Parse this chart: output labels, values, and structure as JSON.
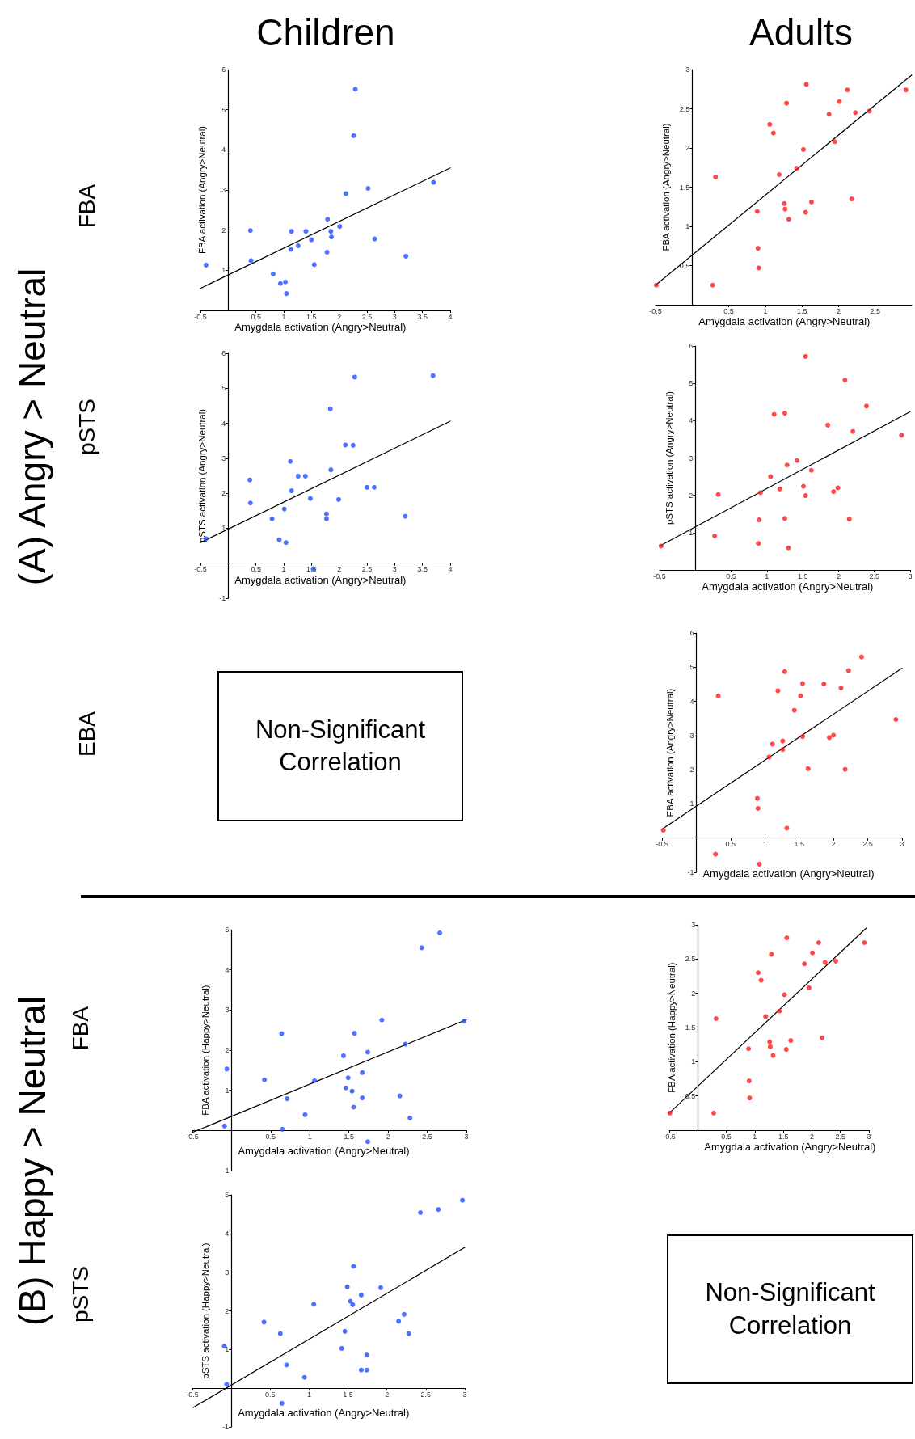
{
  "chart_data": [
    {
      "type": "other",
      "annotations": [
        "Children",
        "Adults",
        "(A) Angry > Neutral",
        "(B) Happy > Neutral",
        "FBA",
        "pSTS",
        "EBA",
        "FBA",
        "pSTS"
      ]
    },
    {
      "type": "scatter",
      "xlabel": "Amygdala activation (Angry>Neutral)",
      "ylabel": "FBA activation (Angry>Neutral)",
      "xlim": [
        -0.5,
        4
      ],
      "ylim": [
        0,
        6
      ],
      "xticks": [
        -0.5,
        0.5,
        1,
        1.5,
        2,
        2.5,
        3,
        3.5,
        4
      ],
      "yticks": [
        1,
        2,
        3,
        4,
        5,
        6
      ],
      "series": [
        {
          "type": "scatter",
          "marker": "circle",
          "color": "#1f4fff",
          "x": [
            -0.4,
            2.29,
            2.26,
            3.7,
            2.52,
            2.12,
            1.79,
            0.4,
            2.01,
            1.14,
            1.4,
            1.85,
            1.86,
            2.64,
            1.5,
            1.26,
            1.13,
            0.41,
            1.78,
            1.55,
            3.2,
            0.81,
            0.94,
            1.03,
            1.05
          ],
          "values": [
            1.13,
            5.51,
            4.35,
            3.19,
            3.04,
            2.91,
            2.27,
            1.99,
            2.09,
            1.97,
            1.97,
            1.97,
            1.83,
            1.78,
            1.76,
            1.61,
            1.52,
            1.24,
            1.45,
            1.14,
            1.35,
            0.91,
            0.67,
            0.71,
            0.42
          ]
        },
        {
          "type": "line",
          "color": "#000000",
          "x": [
            -0.5,
            4
          ],
          "values": [
            0.55,
            3.55
          ]
        }
      ]
    },
    {
      "type": "scatter",
      "xlabel": "Amygdala activation (Angry>Neutral)",
      "ylabel": "FBA activation (Angry>Neutral)",
      "xlim": [
        -0.5,
        3
      ],
      "ylim": [
        0,
        3
      ],
      "xticks": [
        -0.5,
        0.5,
        1,
        1.5,
        2,
        2.5
      ],
      "yticks": [
        0.5,
        1,
        1.5,
        2,
        2.5,
        3
      ],
      "series": [
        {
          "type": "scatter",
          "marker": "circle",
          "color": "#ff1a1a",
          "x": [
            -0.49,
            0.28,
            0.32,
            0.91,
            0.9,
            0.89,
            1.06,
            1.11,
            1.19,
            1.26,
            1.27,
            1.32,
            1.29,
            1.43,
            1.52,
            1.56,
            1.55,
            1.63,
            1.87,
            1.95,
            2.01,
            2.12,
            2.18,
            2.23,
            2.42,
            2.92
          ],
          "values": [
            0.25,
            0.25,
            1.63,
            0.47,
            0.72,
            1.19,
            2.3,
            2.19,
            1.66,
            1.29,
            1.22,
            1.09,
            2.57,
            1.74,
            1.98,
            2.81,
            1.18,
            1.31,
            2.43,
            2.08,
            2.59,
            2.74,
            1.35,
            2.45,
            2.47,
            2.74
          ]
        },
        {
          "type": "line",
          "color": "#000000",
          "x": [
            -0.5,
            3
          ],
          "values": [
            0.25,
            2.93
          ]
        }
      ]
    },
    {
      "type": "scatter",
      "xlabel": "Amygdala activation (Angry>Neutral)",
      "ylabel": "pSTS activation (Angry>Neutral)",
      "xlim": [
        -0.5,
        4
      ],
      "ylim": [
        -1,
        6
      ],
      "xticks": [
        -0.5,
        0.5,
        1,
        1.5,
        2,
        2.5,
        3,
        3.5,
        4
      ],
      "yticks": [
        -1,
        1,
        2,
        3,
        4,
        5,
        6
      ],
      "series": [
        {
          "type": "scatter",
          "marker": "circle",
          "color": "#1f4fff",
          "x": [
            -0.4,
            2.28,
            3.69,
            1.84,
            2.11,
            2.25,
            1.12,
            1.85,
            1.26,
            1.39,
            0.39,
            2.5,
            2.63,
            1.14,
            1.48,
            1.99,
            0.4,
            1.01,
            1.77,
            1.77,
            0.79,
            3.19,
            0.92,
            1.04,
            1.53
          ],
          "values": [
            0.7,
            5.32,
            5.36,
            4.41,
            3.38,
            3.37,
            2.91,
            2.67,
            2.49,
            2.49,
            2.38,
            2.17,
            2.17,
            2.07,
            1.85,
            1.82,
            1.72,
            1.55,
            1.41,
            1.27,
            1.27,
            1.34,
            0.67,
            0.59,
            -0.16
          ]
        },
        {
          "type": "line",
          "color": "#000000",
          "x": [
            -0.5,
            4
          ],
          "values": [
            0.59,
            4.06
          ]
        }
      ]
    },
    {
      "type": "scatter",
      "xlabel": "Amygdala activation (Angry>Neutral)",
      "ylabel": "pSTS activation (Angry>Neutral)",
      "xlim": [
        -0.5,
        3
      ],
      "ylim": [
        0,
        6
      ],
      "xticks": [
        -0.5,
        0.5,
        1,
        1.5,
        2,
        2.5,
        3
      ],
      "yticks": [
        1,
        2,
        3,
        4,
        5,
        6
      ],
      "series": [
        {
          "type": "scatter",
          "marker": "circle",
          "color": "#ff1a1a",
          "x": [
            -0.48,
            0.27,
            0.32,
            0.88,
            0.89,
            0.91,
            1.05,
            1.1,
            1.18,
            1.25,
            1.25,
            1.28,
            1.3,
            1.42,
            1.54,
            1.51,
            1.54,
            1.62,
            1.85,
            1.93,
            1.99,
            2.09,
            2.15,
            2.2,
            2.39,
            2.88
          ],
          "values": [
            0.64,
            0.91,
            2.02,
            0.71,
            1.34,
            2.07,
            2.5,
            4.17,
            2.17,
            4.2,
            1.38,
            2.81,
            0.59,
            2.93,
            5.72,
            2.24,
            1.99,
            2.67,
            3.88,
            2.1,
            2.2,
            5.09,
            1.36,
            3.71,
            4.39,
            3.61
          ]
        },
        {
          "type": "line",
          "color": "#000000",
          "x": [
            -0.5,
            3
          ],
          "values": [
            0.64,
            4.24
          ]
        }
      ]
    },
    {
      "type": "other",
      "annotations": [
        "Non-Significant Correlation"
      ]
    },
    {
      "type": "scatter",
      "xlabel": "Amygdala activation (Angry>Neutral)",
      "ylabel": "EBA activation (Angry>Neutral)",
      "xlim": [
        -0.5,
        3
      ],
      "ylim": [
        -1,
        6
      ],
      "xticks": [
        -0.5,
        0.5,
        1,
        1.5,
        2,
        2.5,
        3
      ],
      "yticks": [
        -1,
        1,
        2,
        3,
        4,
        5,
        6
      ],
      "series": [
        {
          "type": "scatter",
          "marker": "circle",
          "color": "#ff1a1a",
          "x": [
            -0.48,
            0.32,
            0.28,
            0.89,
            0.9,
            0.92,
            1.06,
            1.11,
            1.19,
            1.26,
            1.26,
            1.29,
            1.32,
            1.43,
            1.52,
            1.55,
            1.55,
            1.63,
            1.86,
            1.94,
            2.0,
            2.11,
            2.17,
            2.22,
            2.41,
            2.91
          ],
          "values": [
            0.23,
            4.16,
            -0.47,
            1.16,
            0.87,
            -0.76,
            2.37,
            2.75,
            4.31,
            2.59,
            2.84,
            4.87,
            0.29,
            3.74,
            4.16,
            4.52,
            2.97,
            2.03,
            4.51,
            2.94,
            3.01,
            4.39,
            2.01,
            4.9,
            5.3,
            3.47
          ]
        },
        {
          "type": "line",
          "color": "#000000",
          "x": [
            -0.5,
            3
          ],
          "values": [
            0.26,
            4.97
          ]
        }
      ]
    },
    {
      "type": "scatter",
      "xlabel": "Amygdala activation (Angry>Neutral)",
      "ylabel": "FBA activation (Happy>Neutral)",
      "xlim": [
        -0.5,
        3
      ],
      "ylim": [
        -1,
        5
      ],
      "xticks": [
        -0.5,
        0.5,
        1,
        1.5,
        2,
        2.5,
        3
      ],
      "yticks": [
        -1,
        1,
        2,
        3,
        4,
        5
      ],
      "series": [
        {
          "type": "scatter",
          "marker": "circle",
          "color": "#1f4fff",
          "x": [
            -0.09,
            -0.06,
            0.42,
            0.64,
            0.65,
            0.71,
            0.94,
            1.06,
            1.43,
            1.46,
            1.49,
            1.54,
            1.57,
            1.56,
            1.67,
            1.67,
            1.74,
            1.74,
            1.92,
            2.15,
            2.22,
            2.28,
            2.43,
            2.66,
            2.97
          ],
          "values": [
            0.11,
            1.53,
            1.26,
            2.41,
            0.03,
            0.79,
            0.39,
            1.24,
            1.86,
            1.06,
            1.31,
            0.98,
            2.42,
            0.58,
            1.44,
            0.81,
            1.95,
            -0.28,
            2.75,
            0.86,
            2.15,
            0.31,
            4.55,
            4.92,
            2.72
          ]
        },
        {
          "type": "line",
          "color": "#000000",
          "x": [
            -0.5,
            3
          ],
          "values": [
            -0.05,
            2.76
          ]
        }
      ]
    },
    {
      "type": "scatter",
      "xlabel": "Amygdala activation (Angry>Neutral)",
      "ylabel": "FBA activation (Happy>Neutral)",
      "xlim": [
        -0.5,
        3
      ],
      "ylim": [
        0,
        3
      ],
      "xticks": [
        -0.5,
        0.5,
        1,
        1.5,
        2,
        2.5,
        3
      ],
      "yticks": [
        0.5,
        1,
        1.5,
        2,
        2.5,
        3
      ],
      "series": [
        {
          "type": "scatter",
          "marker": "circle",
          "color": "#ff1a1a",
          "x": [
            -0.49,
            0.28,
            0.32,
            0.91,
            0.9,
            0.89,
            1.06,
            1.11,
            1.19,
            1.26,
            1.27,
            1.32,
            1.29,
            1.43,
            1.52,
            1.56,
            1.55,
            1.63,
            1.87,
            1.95,
            2.01,
            2.12,
            2.18,
            2.23,
            2.42,
            2.92
          ],
          "values": [
            0.25,
            0.25,
            1.63,
            0.47,
            0.72,
            1.19,
            2.3,
            2.19,
            1.66,
            1.29,
            1.22,
            1.09,
            2.57,
            1.74,
            1.98,
            2.81,
            1.18,
            1.31,
            2.43,
            2.08,
            2.59,
            2.74,
            1.35,
            2.45,
            2.47,
            2.74
          ]
        },
        {
          "type": "line",
          "color": "#000000",
          "x": [
            -0.5,
            2.95
          ],
          "values": [
            0.25,
            2.95
          ]
        }
      ]
    },
    {
      "type": "scatter",
      "xlabel": "Amygdala activation (Angry>Neutral)",
      "ylabel": "pSTS activation (Happy>Neutral)",
      "xlim": [
        -0.5,
        3
      ],
      "ylim": [
        -1,
        5
      ],
      "xticks": [
        -0.5,
        0.5,
        1,
        1.5,
        2,
        2.5,
        3
      ],
      "yticks": [
        -1,
        1,
        2,
        3,
        4,
        5
      ],
      "series": [
        {
          "type": "scatter",
          "marker": "circle",
          "color": "#1f4fff",
          "x": [
            -0.09,
            -0.06,
            0.42,
            0.63,
            0.65,
            0.71,
            0.94,
            1.06,
            1.42,
            1.46,
            1.49,
            1.53,
            1.56,
            1.57,
            1.67,
            1.67,
            1.74,
            1.74,
            1.92,
            2.15,
            2.22,
            2.28,
            2.43,
            2.66,
            2.97
          ],
          "values": [
            1.09,
            0.1,
            1.71,
            1.41,
            -0.39,
            0.6,
            0.28,
            2.17,
            1.03,
            1.47,
            2.62,
            2.25,
            2.16,
            3.15,
            2.41,
            0.47,
            0.47,
            0.86,
            2.6,
            1.73,
            1.91,
            1.41,
            4.54,
            4.62,
            4.86
          ]
        },
        {
          "type": "line",
          "color": "#000000",
          "x": [
            -0.49,
            3
          ],
          "values": [
            -0.5,
            3.64
          ]
        }
      ]
    },
    {
      "type": "other",
      "annotations": [
        "Non-Significant Correlation"
      ]
    }
  ]
}
